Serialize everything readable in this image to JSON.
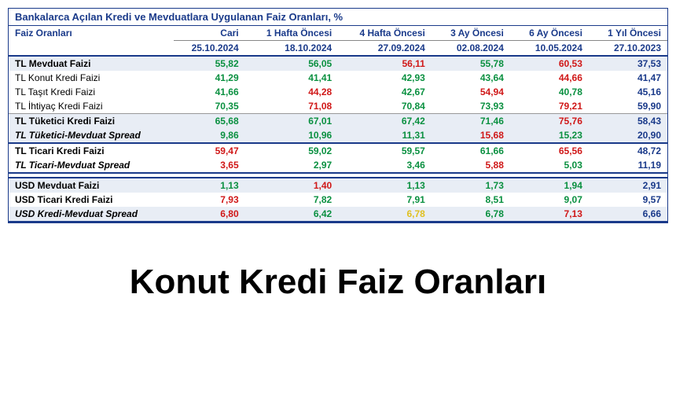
{
  "title": "Bankalarca Açılan Kredi ve Mevduatlara Uygulanan Faiz Oranları, %",
  "footerTitle": "Konut Kredi Faiz Oranları",
  "rowHeaderLabel": "Faiz Oranları",
  "columns": [
    {
      "label": "Cari",
      "date": "25.10.2024"
    },
    {
      "label": "1 Hafta Öncesi",
      "date": "18.10.2024"
    },
    {
      "label": "4 Hafta Öncesi",
      "date": "27.09.2024"
    },
    {
      "label": "3 Ay Öncesi",
      "date": "02.08.2024"
    },
    {
      "label": "6 Ay Öncesi",
      "date": "10.05.2024"
    },
    {
      "label": "1 Yıl Öncesi",
      "date": "27.10.2023"
    }
  ],
  "rows": [
    {
      "label": "TL Mevduat Faizi",
      "labelStyle": "bold",
      "shade": true,
      "borderB": false,
      "cells": [
        [
          "55,82",
          "g"
        ],
        [
          "56,05",
          "g"
        ],
        [
          "56,11",
          "r"
        ],
        [
          "55,78",
          "g"
        ],
        [
          "60,53",
          "r"
        ],
        [
          "37,53",
          "n"
        ]
      ]
    },
    {
      "label": "TL Konut Kredi Faizi",
      "labelStyle": "",
      "shade": false,
      "borderB": false,
      "cells": [
        [
          "41,29",
          "g"
        ],
        [
          "41,41",
          "g"
        ],
        [
          "42,93",
          "g"
        ],
        [
          "43,64",
          "g"
        ],
        [
          "44,66",
          "r"
        ],
        [
          "41,47",
          "n"
        ]
      ]
    },
    {
      "label": "TL Taşıt Kredi Faizi",
      "labelStyle": "",
      "shade": false,
      "borderB": false,
      "cells": [
        [
          "41,66",
          "g"
        ],
        [
          "44,28",
          "r"
        ],
        [
          "42,67",
          "g"
        ],
        [
          "54,94",
          "r"
        ],
        [
          "40,78",
          "g"
        ],
        [
          "45,16",
          "n"
        ]
      ]
    },
    {
      "label": "TL İhtiyaç Kredi Faizi",
      "labelStyle": "",
      "shade": false,
      "borderLight": true,
      "cells": [
        [
          "70,35",
          "g"
        ],
        [
          "71,08",
          "r"
        ],
        [
          "70,84",
          "g"
        ],
        [
          "73,93",
          "g"
        ],
        [
          "79,21",
          "r"
        ],
        [
          "59,90",
          "n"
        ]
      ]
    },
    {
      "label": "TL Tüketici Kredi Faizi",
      "labelStyle": "bold",
      "shade": true,
      "borderB": false,
      "cells": [
        [
          "65,68",
          "g"
        ],
        [
          "67,01",
          "g"
        ],
        [
          "67,42",
          "g"
        ],
        [
          "71,46",
          "g"
        ],
        [
          "75,76",
          "r"
        ],
        [
          "58,43",
          "n"
        ]
      ]
    },
    {
      "label": "TL Tüketici-Mevduat Spread",
      "labelStyle": "italic",
      "shade": true,
      "borderB": true,
      "cells": [
        [
          "9,86",
          "g"
        ],
        [
          "10,96",
          "g"
        ],
        [
          "11,31",
          "g"
        ],
        [
          "15,68",
          "r"
        ],
        [
          "15,23",
          "g"
        ],
        [
          "20,90",
          "n"
        ]
      ]
    },
    {
      "label": "TL Ticari Kredi Faizi",
      "labelStyle": "bold",
      "shade": false,
      "borderB": false,
      "cells": [
        [
          "59,47",
          "r"
        ],
        [
          "59,02",
          "g"
        ],
        [
          "59,57",
          "g"
        ],
        [
          "61,66",
          "g"
        ],
        [
          "65,56",
          "r"
        ],
        [
          "48,72",
          "n"
        ]
      ]
    },
    {
      "label": "TL Ticari-Mevduat Spread",
      "labelStyle": "italic",
      "shade": false,
      "borderB": true,
      "cells": [
        [
          "3,65",
          "r"
        ],
        [
          "2,97",
          "g"
        ],
        [
          "3,46",
          "g"
        ],
        [
          "5,88",
          "r"
        ],
        [
          "5,03",
          "g"
        ],
        [
          "11,19",
          "n"
        ]
      ]
    },
    {
      "label": "",
      "labelStyle": "",
      "shade": false,
      "borderB": true,
      "cells": [
        [
          "",
          ""
        ],
        [
          "",
          ""
        ],
        [
          "",
          ""
        ],
        [
          "",
          ""
        ],
        [
          "",
          ""
        ],
        [
          "",
          ""
        ]
      ]
    },
    {
      "label": "USD Mevduat Faizi",
      "labelStyle": "bold",
      "shade": true,
      "borderB": false,
      "cells": [
        [
          "1,13",
          "g"
        ],
        [
          "1,40",
          "r"
        ],
        [
          "1,13",
          "g"
        ],
        [
          "1,73",
          "g"
        ],
        [
          "1,94",
          "g"
        ],
        [
          "2,91",
          "n"
        ]
      ]
    },
    {
      "label": "USD Ticari Kredi Faizi",
      "labelStyle": "bold",
      "shade": false,
      "borderB": false,
      "cells": [
        [
          "7,93",
          "r"
        ],
        [
          "7,82",
          "g"
        ],
        [
          "7,91",
          "g"
        ],
        [
          "8,51",
          "g"
        ],
        [
          "9,07",
          "g"
        ],
        [
          "9,57",
          "n"
        ]
      ]
    },
    {
      "label": "USD Kredi-Mevduat Spread",
      "labelStyle": "italic",
      "shade": true,
      "borderB": true,
      "cells": [
        [
          "6,80",
          "r"
        ],
        [
          "6,42",
          "g"
        ],
        [
          "6,78",
          "y"
        ],
        [
          "6,78",
          "g"
        ],
        [
          "7,13",
          "r"
        ],
        [
          "6,66",
          "n"
        ]
      ]
    }
  ],
  "colors": {
    "g": "#0a9040",
    "r": "#d01818",
    "n": "#1a3a8a",
    "y": "#e0c020"
  }
}
